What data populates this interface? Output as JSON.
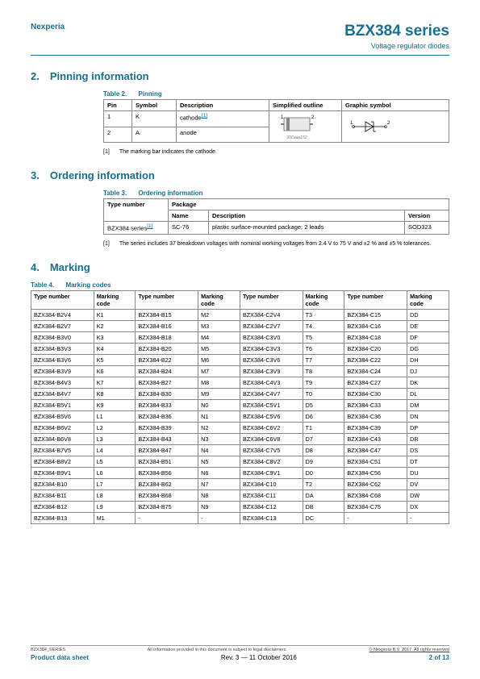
{
  "header": {
    "brand": "Nexperia",
    "product_title": "BZX384 series",
    "product_sub": "Voltage regulator diodes"
  },
  "section2": {
    "heading": "2. Pinning information",
    "caption_label": "Table 2.",
    "caption_title": "Pinning",
    "cols": [
      "Pin",
      "Symbol",
      "Description",
      "Simplified outline",
      "Graphic symbol"
    ],
    "rows": [
      [
        "1",
        "K",
        "cathode"
      ],
      [
        "2",
        "A",
        "anode"
      ]
    ],
    "ref": "[1]",
    "footnote_num": "[1]",
    "footnote_text": "The marking bar indicates the cathode.",
    "outline_id": "006aaa152",
    "pin1": "1",
    "pin2": "2",
    "sym1": "1",
    "sym2": "2"
  },
  "section3": {
    "heading": "3. Ordering information",
    "caption_label": "Table 3.",
    "caption_title": "Ordering information",
    "col_type": "Type number",
    "col_pkg": "Package",
    "col_name": "Name",
    "col_desc": "Description",
    "col_ver": "Version",
    "row_type": "BZX384 series",
    "row_ref": "[1]",
    "row_name": "SC-76",
    "row_desc": "plastic surface-mounted package; 2 leads",
    "row_ver": "SOD323",
    "footnote_num": "[1]",
    "footnote_text": "The series includes 37 breakdown voltages with nominal working voltages from 2.4 V to 75 V and ±2 % and ±5 % tolerances."
  },
  "section4": {
    "heading": "4. Marking",
    "caption_label": "Table 4.",
    "caption_title": "Marking codes",
    "headers": [
      "Type number",
      "Marking code",
      "Type number",
      "Marking code",
      "Type number",
      "Marking code",
      "Type number",
      "Marking code"
    ],
    "rows": [
      [
        "BZX384-B2V4",
        "K1",
        "BZX384-B15",
        "M2",
        "BZX384-C2V4",
        "T3",
        "BZX384-C15",
        "DD"
      ],
      [
        "BZX384-B2V7",
        "K2",
        "BZX384-B16",
        "M3",
        "BZX384-C2V7",
        "T4",
        "BZX384-C16",
        "DE"
      ],
      [
        "BZX384-B3V0",
        "K3",
        "BZX384-B18",
        "M4",
        "BZX384-C3V0",
        "T5",
        "BZX384-C18",
        "DF"
      ],
      [
        "BZX384-B3V3",
        "K4",
        "BZX384-B20",
        "M5",
        "BZX384-C3V3",
        "T6",
        "BZX384-C20",
        "DG"
      ],
      [
        "BZX384-B3V6",
        "K5",
        "BZX384-B22",
        "M6",
        "BZX384-C3V6",
        "T7",
        "BZX384-C22",
        "DH"
      ],
      [
        "BZX384-B3V9",
        "K6",
        "BZX384-B24",
        "M7",
        "BZX384-C3V9",
        "T8",
        "BZX384-C24",
        "DJ"
      ],
      [
        "BZX384-B4V3",
        "K7",
        "BZX384-B27",
        "M8",
        "BZX384-C4V3",
        "T9",
        "BZX384-C27",
        "DK"
      ],
      [
        "BZX384-B4V7",
        "K8",
        "BZX384-B30",
        "M9",
        "BZX384-C4V7",
        "T0",
        "BZX384-C30",
        "DL"
      ],
      [
        "BZX384-B5V1",
        "K9",
        "BZX384-B33",
        "N0",
        "BZX384-C5V1",
        "D5",
        "BZX384-C33",
        "DM"
      ],
      [
        "BZX384-B5V6",
        "L1",
        "BZX384-B36",
        "N1",
        "BZX384-C5V6",
        "D6",
        "BZX384-C36",
        "DN"
      ],
      [
        "BZX384-B6V2",
        "L2",
        "BZX384-B39",
        "N2",
        "BZX384-C6V2",
        "T1",
        "BZX384-C39",
        "DP"
      ],
      [
        "BZX384-B6V8",
        "L3",
        "BZX384-B43",
        "N3",
        "BZX384-C6V8",
        "D7",
        "BZX384-C43",
        "DR"
      ],
      [
        "BZX384-B7V5",
        "L4",
        "BZX384-B47",
        "N4",
        "BZX384-C7V5",
        "D8",
        "BZX384-C47",
        "DS"
      ],
      [
        "BZX384-B8V2",
        "L5",
        "BZX384-B51",
        "N5",
        "BZX384-C8V2",
        "D9",
        "BZX384-C51",
        "DT"
      ],
      [
        "BZX384-B9V1",
        "L6",
        "BZX384-B56",
        "N6",
        "BZX384-C9V1",
        "D0",
        "BZX384-C56",
        "DU"
      ],
      [
        "BZX384-B10",
        "L7",
        "BZX384-B62",
        "N7",
        "BZX384-C10",
        "T2",
        "BZX384-C62",
        "DV"
      ],
      [
        "BZX384-B11",
        "L8",
        "BZX384-B68",
        "N8",
        "BZX384-C11",
        "DA",
        "BZX384-C68",
        "DW"
      ],
      [
        "BZX384-B12",
        "L9",
        "BZX384-B75",
        "N9",
        "BZX384-C12",
        "DB",
        "BZX384-C75",
        "DX"
      ],
      [
        "BZX384-B13",
        "M1",
        "-",
        "-",
        "BZX384-C13",
        "DC",
        "-",
        "-"
      ]
    ]
  },
  "footer": {
    "doc_id": "BZX384_SERIES",
    "disclaimer": "All information provided in this document is subject to legal disclaimers.",
    "copyright": "© Nexperia B.V. 2017. All rights reserved",
    "doc_type": "Product data sheet",
    "revision": "Rev. 3 — 11 October 2016",
    "page": "2 of 13"
  },
  "style": {
    "accent_color": "#1a6e8e",
    "link_color": "#0066cc",
    "border_color": "#888888"
  }
}
